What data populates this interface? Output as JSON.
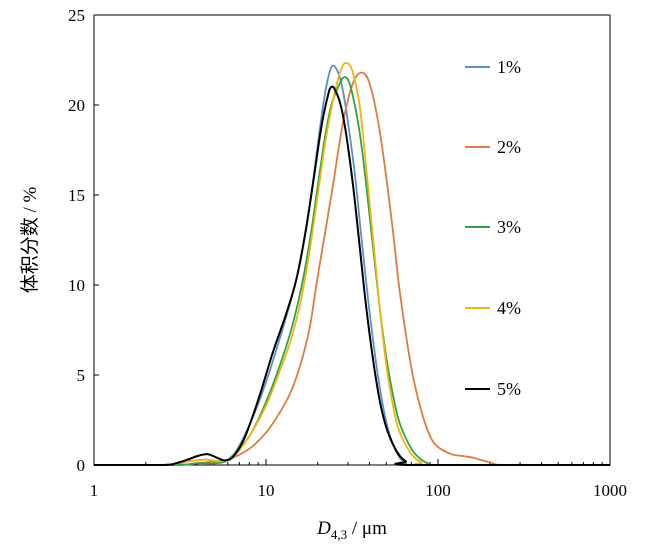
{
  "chart_data": {
    "type": "line",
    "xscale": "log",
    "xlim": [
      1,
      1000
    ],
    "ylim": [
      0,
      25
    ],
    "x_ticks": [
      1,
      10,
      100,
      1000
    ],
    "x_tick_labels": [
      "1",
      "10",
      "100",
      "1000"
    ],
    "y_ticks": [
      0,
      5,
      10,
      15,
      20,
      25
    ],
    "y_tick_labels": [
      "0",
      "5",
      "10",
      "15",
      "20",
      "25"
    ],
    "xlabel": {
      "main": "D",
      "sub": "4,3",
      "unit": " / μm"
    },
    "ylabel": "体积分数 / %",
    "grid": false,
    "legend_position": "right",
    "series": [
      {
        "name": "1%",
        "color": "#5B8FC7",
        "points": [
          [
            1,
            0
          ],
          [
            2.5,
            0
          ],
          [
            3.5,
            0.2
          ],
          [
            4.5,
            0.3
          ],
          [
            5.5,
            0.2
          ],
          [
            6.5,
            0.6
          ],
          [
            8,
            2.2
          ],
          [
            10,
            4.6
          ],
          [
            12,
            7.0
          ],
          [
            14,
            9.2
          ],
          [
            16,
            11.5
          ],
          [
            18,
            14.5
          ],
          [
            20,
            17.8
          ],
          [
            22,
            20.6
          ],
          [
            24,
            22.1
          ],
          [
            26,
            21.9
          ],
          [
            28,
            20.8
          ],
          [
            30,
            19.0
          ],
          [
            33,
            16.0
          ],
          [
            36,
            12.5
          ],
          [
            40,
            8.5
          ],
          [
            45,
            4.8
          ],
          [
            50,
            2.4
          ],
          [
            55,
            1.1
          ],
          [
            60,
            0.4
          ],
          [
            65,
            0.1
          ],
          [
            70,
            0
          ],
          [
            1000,
            0
          ]
        ]
      },
      {
        "name": "2%",
        "color": "#E07B3C",
        "points": [
          [
            1,
            0
          ],
          [
            3,
            0
          ],
          [
            4,
            0.1
          ],
          [
            5,
            0.2
          ],
          [
            6,
            0.3
          ],
          [
            8,
            0.9
          ],
          [
            10,
            1.8
          ],
          [
            12,
            2.9
          ],
          [
            14,
            4.1
          ],
          [
            16,
            5.7
          ],
          [
            18,
            7.7
          ],
          [
            20,
            10.5
          ],
          [
            24,
            15.0
          ],
          [
            28,
            19.0
          ],
          [
            32,
            21.2
          ],
          [
            36,
            21.8
          ],
          [
            40,
            21.2
          ],
          [
            45,
            19.0
          ],
          [
            50,
            16.0
          ],
          [
            55,
            12.8
          ],
          [
            60,
            9.6
          ],
          [
            70,
            5.4
          ],
          [
            80,
            3.0
          ],
          [
            90,
            1.6
          ],
          [
            100,
            1.0
          ],
          [
            120,
            0.6
          ],
          [
            140,
            0.5
          ],
          [
            160,
            0.4
          ],
          [
            200,
            0.15
          ],
          [
            250,
            0
          ],
          [
            800,
            0
          ]
        ]
      },
      {
        "name": "3%",
        "color": "#2EA449",
        "points": [
          [
            1,
            0
          ],
          [
            3,
            0
          ],
          [
            4,
            0.1
          ],
          [
            5,
            0.1
          ],
          [
            6,
            0.3
          ],
          [
            8,
            1.6
          ],
          [
            10,
            3.5
          ],
          [
            12,
            5.5
          ],
          [
            14,
            7.5
          ],
          [
            16,
            9.8
          ],
          [
            18,
            12.5
          ],
          [
            20,
            15.5
          ],
          [
            22,
            18.2
          ],
          [
            24,
            20.0
          ],
          [
            26,
            20.9
          ],
          [
            28,
            21.5
          ],
          [
            30,
            21.4
          ],
          [
            32,
            20.5
          ],
          [
            35,
            18.5
          ],
          [
            38,
            15.8
          ],
          [
            42,
            12.0
          ],
          [
            46,
            8.6
          ],
          [
            50,
            6.0
          ],
          [
            55,
            3.8
          ],
          [
            60,
            2.3
          ],
          [
            70,
            0.9
          ],
          [
            80,
            0.3
          ],
          [
            90,
            0.05
          ],
          [
            100,
            0
          ],
          [
            1000,
            0
          ]
        ]
      },
      {
        "name": "4%",
        "color": "#F2B50F",
        "points": [
          [
            1,
            0
          ],
          [
            2.5,
            0
          ],
          [
            3.5,
            0.2
          ],
          [
            4.5,
            0.3
          ],
          [
            5.5,
            0.2
          ],
          [
            6.5,
            0.5
          ],
          [
            8,
            1.6
          ],
          [
            10,
            3.3
          ],
          [
            12,
            5.2
          ],
          [
            14,
            7.0
          ],
          [
            16,
            9.2
          ],
          [
            18,
            12.0
          ],
          [
            20,
            15.0
          ],
          [
            22,
            17.8
          ],
          [
            24,
            19.8
          ],
          [
            26,
            21.3
          ],
          [
            28,
            22.2
          ],
          [
            30,
            22.3
          ],
          [
            32,
            21.8
          ],
          [
            35,
            20.0
          ],
          [
            38,
            16.8
          ],
          [
            42,
            12.5
          ],
          [
            46,
            8.6
          ],
          [
            50,
            5.6
          ],
          [
            55,
            3.2
          ],
          [
            60,
            1.8
          ],
          [
            70,
            0.6
          ],
          [
            80,
            0.15
          ],
          [
            90,
            0
          ],
          [
            1000,
            0
          ]
        ]
      },
      {
        "name": "5%",
        "color": "#000000",
        "points": [
          [
            1,
            0
          ],
          [
            2.5,
            0
          ],
          [
            3,
            0.1
          ],
          [
            3.5,
            0.3
          ],
          [
            4,
            0.5
          ],
          [
            4.6,
            0.6
          ],
          [
            5.2,
            0.4
          ],
          [
            5.8,
            0.25
          ],
          [
            6.5,
            0.5
          ],
          [
            7.5,
            1.5
          ],
          [
            9,
            3.6
          ],
          [
            11,
            6.3
          ],
          [
            13,
            8.3
          ],
          [
            15,
            10.3
          ],
          [
            17,
            13.0
          ],
          [
            19,
            16.0
          ],
          [
            21,
            18.8
          ],
          [
            23,
            20.6
          ],
          [
            24,
            21.0
          ],
          [
            25,
            20.9
          ],
          [
            27,
            20.1
          ],
          [
            29,
            18.6
          ],
          [
            32,
            15.6
          ],
          [
            35,
            12.2
          ],
          [
            38,
            9.0
          ],
          [
            42,
            5.8
          ],
          [
            46,
            3.5
          ],
          [
            50,
            2.1
          ],
          [
            55,
            1.1
          ],
          [
            60,
            0.5
          ],
          [
            65,
            0.2
          ],
          [
            70,
            0
          ],
          [
            1000,
            0
          ]
        ]
      }
    ]
  }
}
